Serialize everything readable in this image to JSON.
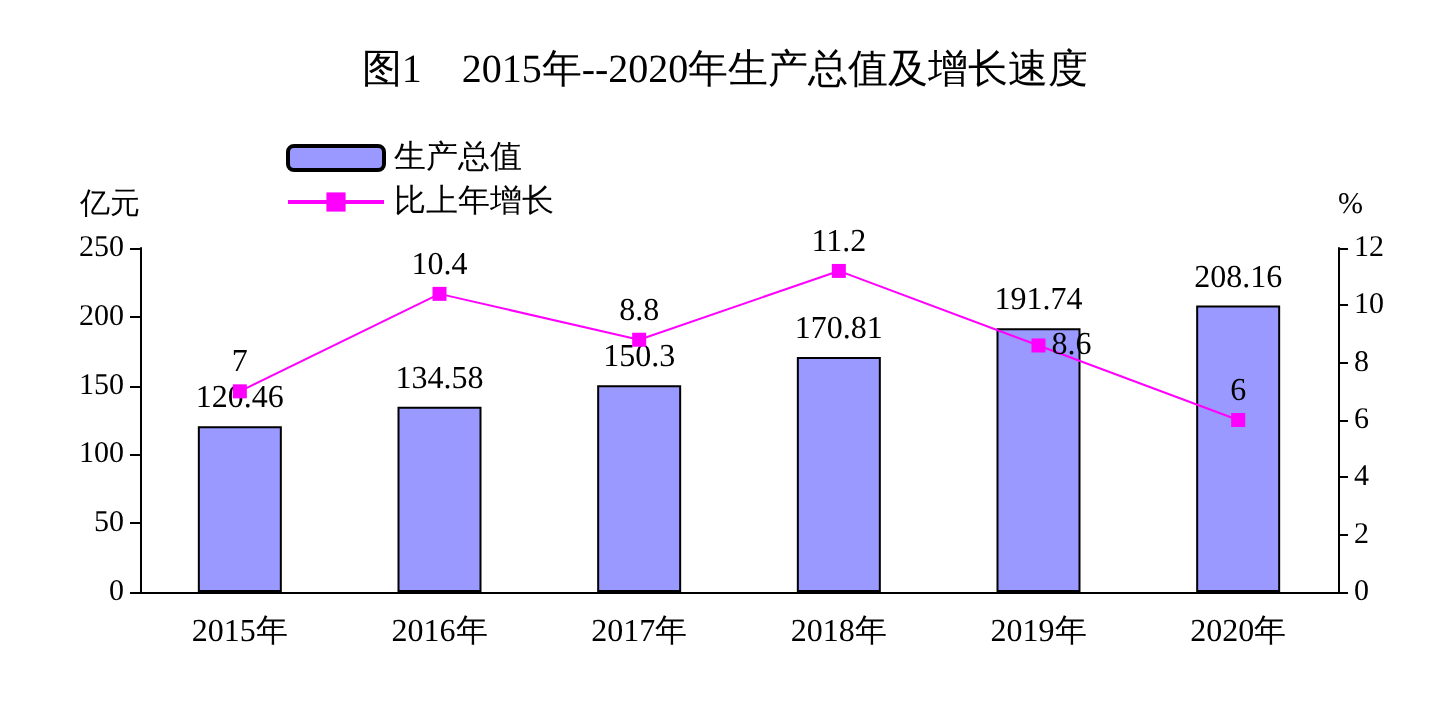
{
  "chart_data": {
    "type": "bar",
    "title": "图1　2015年--2020年生产总值及增长速度",
    "ylabel": "亿元",
    "y2label": "%",
    "categories": [
      "2015年",
      "2016年",
      "2017年",
      "2018年",
      "2019年",
      "2020年"
    ],
    "series": [
      {
        "name": "生产总值",
        "color": "#9999ff",
        "values": [
          120.46,
          134.58,
          150.3,
          170.81,
          191.74,
          208.16
        ]
      },
      {
        "name": "比上年增长",
        "type": "line",
        "axis": "y2",
        "color": "#ff00ff",
        "marker": "square",
        "values": [
          7,
          10.4,
          8.8,
          11.2,
          8.6,
          6
        ]
      }
    ],
    "ylim": [
      0,
      250
    ],
    "yticks": [
      0,
      50,
      100,
      150,
      200,
      250
    ],
    "y2lim": [
      0,
      12
    ],
    "y2ticks": [
      0,
      2,
      4,
      6,
      8,
      10,
      12
    ],
    "data_labels": true,
    "grid": false,
    "legend": "top left"
  }
}
